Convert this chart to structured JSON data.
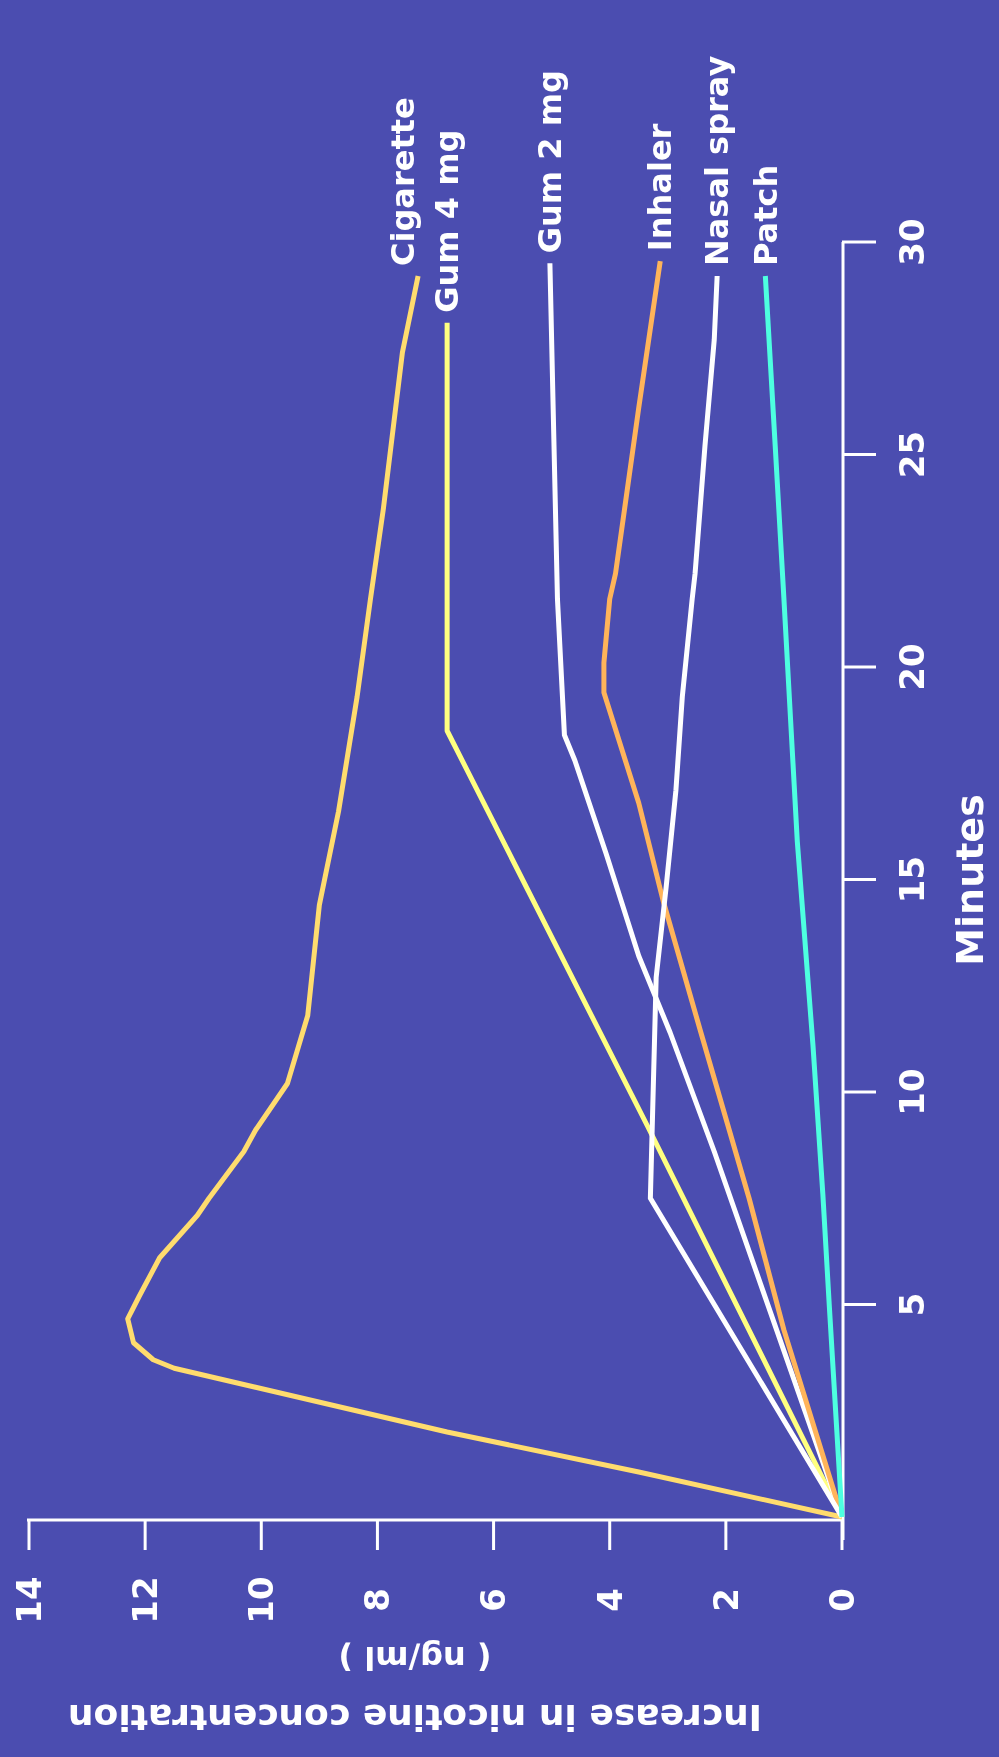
{
  "chart_data": {
    "type": "line",
    "xlabel": "Increase in nicotine concentration\n( ng/ml )",
    "ylabel": "Minutes",
    "xlim": [
      14,
      0
    ],
    "xticks": [
      14,
      12,
      10,
      8,
      6,
      4,
      2,
      0
    ],
    "ylim": [
      0,
      30
    ],
    "yticks": [
      5,
      10,
      15,
      20,
      25,
      30
    ],
    "grid": false,
    "legend": false,
    "marker": "none",
    "line_style": "solid",
    "series": [
      {
        "name": "Cigarette",
        "color": "#ffdc6e",
        "values": [
          0,
          1.06,
          2.0,
          3.5,
          3.7,
          4.1,
          4.66,
          5.2,
          6.1,
          7.1,
          7.5,
          8.6,
          9.1,
          10.2,
          11.8,
          14.4,
          16.6,
          19.3,
          21.6,
          23.7,
          27.4,
          29.2
        ],
        "x": [
          0,
          3.5,
          6.8,
          11.5,
          11.86,
          12.2,
          12.3,
          12.1,
          11.75,
          11.1,
          10.9,
          10.3,
          10.1,
          9.55,
          9.2,
          9.0,
          8.67,
          8.35,
          8.12,
          7.9,
          7.57,
          7.3
        ]
      },
      {
        "name": "Gum 4 mg",
        "color": "#ffff80",
        "values": [
          0,
          9.2,
          18.5,
          28.1
        ],
        "x": [
          0,
          3.35,
          6.8,
          6.8
        ]
      },
      {
        "name": "Gum 2 mg",
        "color": "#ffffff",
        "values": [
          0,
          8.6,
          11.4,
          13.2,
          15.6,
          17.8,
          18.4,
          21.6,
          29.5
        ],
        "x": [
          0,
          2.2,
          2.96,
          3.5,
          4.06,
          4.6,
          4.78,
          4.9,
          5.03
        ]
      },
      {
        "name": "Inhaler",
        "color": "#ffb45a",
        "values": [
          0,
          4.4,
          7.5,
          11.4,
          14.5,
          16.8,
          19.4,
          20.1,
          21.6,
          22.2,
          26.1,
          29.55
        ],
        "x": [
          0,
          1.0,
          1.6,
          2.43,
          3.08,
          3.5,
          4.1,
          4.1,
          4.0,
          3.9,
          3.5,
          3.13
        ]
      },
      {
        "name": "Nasal spray",
        "color": "#ffffff",
        "values": [
          0,
          7.5,
          12.7,
          14.8,
          17.1,
          19.3,
          21.6,
          22.2,
          25.2,
          27.7,
          29.2
        ],
        "x": [
          0,
          3.3,
          3.2,
          3.03,
          2.86,
          2.75,
          2.58,
          2.53,
          2.36,
          2.2,
          2.15
        ]
      },
      {
        "name": "Patch",
        "color": "#4dffe0",
        "values": [
          0,
          5.0,
          7.6,
          11.1,
          15.9,
          21.6,
          25.2,
          29.2
        ],
        "x": [
          0,
          0.22,
          0.33,
          0.5,
          0.77,
          1.0,
          1.15,
          1.32
        ]
      }
    ]
  }
}
